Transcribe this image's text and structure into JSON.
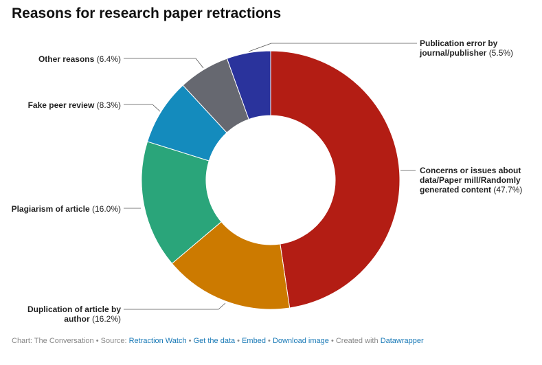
{
  "chart_data": {
    "type": "donut",
    "title": "Reasons for research paper retractions",
    "categories": [
      "Concerns or issues about data/Paper mill/Randomly generated content",
      "Duplication of article by author",
      "Plagiarism of article",
      "Fake peer review",
      "Other reasons",
      "Publication error by journal/publisher"
    ],
    "values": [
      47.7,
      16.2,
      16.0,
      8.3,
      6.4,
      5.5
    ],
    "value_labels": [
      "(47.7%)",
      "(16.2%)",
      "(16.0%)",
      "(8.3%)",
      "(6.4%)",
      "(5.5%)"
    ],
    "colors": [
      "#b31d14",
      "#cc7a00",
      "#2aa57a",
      "#148bbd",
      "#666870",
      "#2a339c"
    ]
  },
  "footer": {
    "credit": "Chart: The Conversation",
    "separator": "•",
    "source": "Source:",
    "links": [
      "Retraction Watch",
      "Get the data",
      "Embed",
      "Download image"
    ],
    "created": "Created with",
    "tool": "Datawrapper"
  }
}
